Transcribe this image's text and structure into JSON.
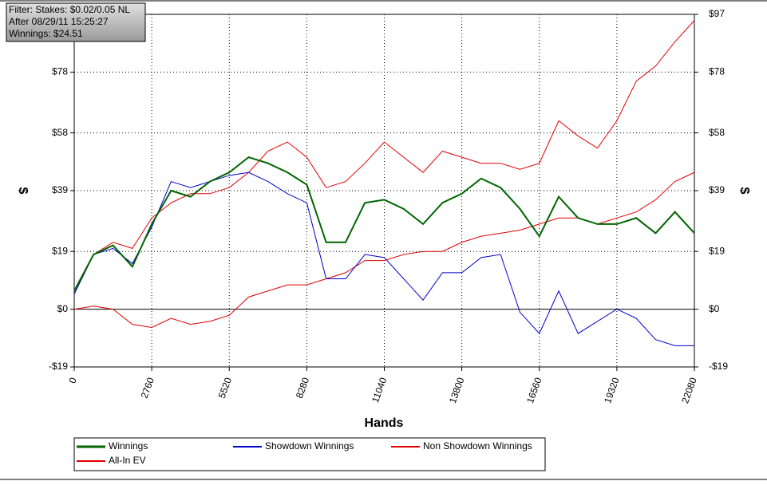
{
  "chart_data": {
    "type": "line",
    "info": [
      "Filter: Stakes: $0.02/0.05 NL",
      "After 08/29/11 15:25:27",
      "Winnings: $24.51"
    ],
    "x_label": "Hands",
    "y_label": "$",
    "x": [
      0,
      690,
      1380,
      2070,
      2760,
      3450,
      4140,
      4830,
      5520,
      6210,
      6900,
      7590,
      8280,
      8970,
      9660,
      10350,
      11040,
      11730,
      12420,
      13110,
      13800,
      14490,
      15180,
      15870,
      16560,
      17250,
      17940,
      18630,
      19320,
      20010,
      20700,
      21390,
      22080
    ],
    "series": [
      {
        "name": "Winnings",
        "color": "#006400",
        "width": 2,
        "values": [
          6,
          18,
          21,
          14,
          28,
          39,
          37,
          42,
          45,
          50,
          48,
          45,
          41,
          22,
          22,
          35,
          36,
          33,
          28,
          35,
          38,
          43,
          40,
          33,
          24,
          37,
          30,
          28,
          28,
          30,
          25,
          32,
          25
        ]
      },
      {
        "name": "Showdown Winnings",
        "color": "#0000cc",
        "width": 1,
        "values": [
          5,
          18,
          20,
          15,
          27,
          42,
          40,
          42,
          44,
          45,
          42,
          38,
          35,
          10,
          10,
          18,
          17,
          10,
          3,
          12,
          12,
          17,
          18,
          -1,
          -8,
          6,
          -8,
          -4,
          0,
          -3,
          -10,
          -12,
          -12
        ]
      },
      {
        "name": "Non Showdown Winnings",
        "color": "#e00000",
        "width": 1,
        "values": [
          0,
          1,
          0,
          -5,
          -6,
          -3,
          -5,
          -4,
          -2,
          4,
          6,
          8,
          8,
          10,
          12,
          16,
          16,
          18,
          19,
          19,
          22,
          24,
          25,
          26,
          28,
          30,
          30,
          28,
          30,
          32,
          36,
          42,
          45
        ]
      },
      {
        "name": "All-In EV",
        "color": "#e00000",
        "width": 1,
        "values": [
          5,
          18,
          22,
          20,
          30,
          35,
          38,
          38,
          40,
          45,
          52,
          55,
          50,
          40,
          42,
          48,
          55,
          50,
          45,
          52,
          50,
          48,
          48,
          46,
          48,
          62,
          57,
          53,
          62,
          75,
          80,
          88,
          95
        ]
      }
    ],
    "xlim": [
      0,
      22080
    ],
    "xticks": [
      0,
      2760,
      5520,
      8280,
      11040,
      13800,
      16560,
      19320,
      22080
    ],
    "ylim": [
      -19,
      97
    ],
    "yticks": [
      {
        "value": -19,
        "label": "-$19"
      },
      {
        "value": 0,
        "label": "$0"
      },
      {
        "value": 19,
        "label": "$19"
      },
      {
        "value": 39,
        "label": "$39"
      },
      {
        "value": 58,
        "label": "$58"
      },
      {
        "value": 78,
        "label": "$78"
      },
      {
        "value": 97,
        "label": "$97"
      }
    ],
    "grid": true
  }
}
